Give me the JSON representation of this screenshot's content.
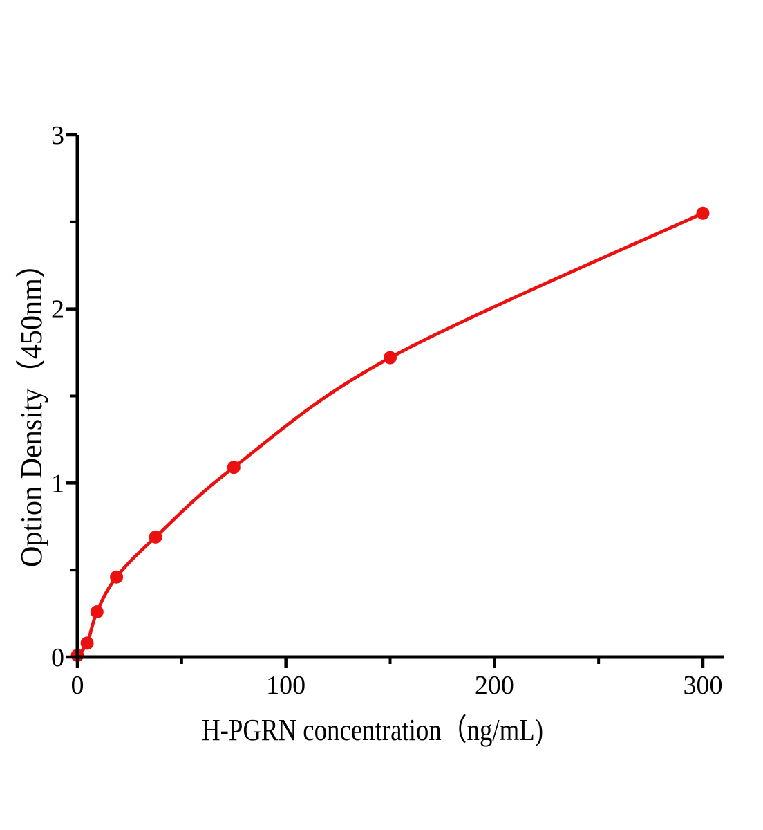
{
  "figure": {
    "background_color": "#ffffff"
  },
  "chart_data": {
    "type": "line",
    "subtype": "scatter-with-smooth-fitted-curve",
    "title": "",
    "xlabel": "H-PGRN concentration（ng/mL)",
    "ylabel": "Option Density（450nm）",
    "x": [
      0,
      4.69,
      9.38,
      18.75,
      37.5,
      75,
      150,
      300
    ],
    "y": [
      0.01,
      0.08,
      0.26,
      0.46,
      0.69,
      1.09,
      1.72,
      2.55
    ],
    "xlim": [
      0,
      310
    ],
    "ylim": [
      0,
      3
    ],
    "x_ticks": {
      "major": [
        0,
        100,
        200,
        300
      ],
      "minor": [
        50,
        150,
        250
      ],
      "labels": [
        "0",
        "100",
        "200",
        "300"
      ]
    },
    "y_ticks": {
      "major": [
        0,
        1,
        2,
        3
      ],
      "minor": [
        0.5,
        1.5,
        2.5
      ],
      "labels": [
        "0",
        "1",
        "2",
        "3"
      ]
    },
    "grid": false,
    "legend": false,
    "marker_shape": "circle",
    "line_color": "#ec1111",
    "marker_color": "#ec1111",
    "axis_color": "#000000",
    "text_color": "#000000"
  }
}
